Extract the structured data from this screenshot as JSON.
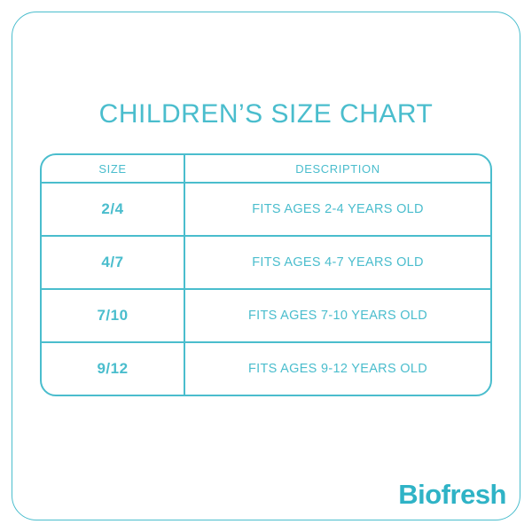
{
  "page": {
    "title": "CHILDREN’S SIZE CHART",
    "logo_text": "Biofresh",
    "accent_color": "#4ABDCD",
    "logo_color": "#2FB3C6"
  },
  "table": {
    "headers": [
      "SIZE",
      "DESCRIPTION"
    ],
    "rows": [
      {
        "size": "2/4",
        "description": "FITS AGES 2-4 YEARS OLD"
      },
      {
        "size": "4/7",
        "description": "FITS AGES 4-7 YEARS OLD"
      },
      {
        "size": "7/10",
        "description": "FITS AGES 7-10 YEARS OLD"
      },
      {
        "size": "9/12",
        "description": "FITS AGES 9-12 YEARS OLD"
      }
    ]
  }
}
